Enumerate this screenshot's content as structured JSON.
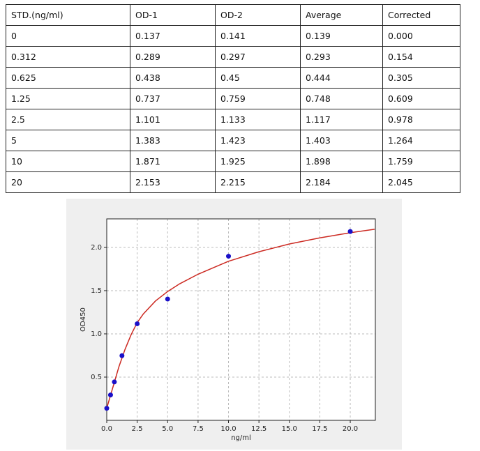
{
  "table": {
    "rows": [
      [
        "STD.(ng/ml)",
        "OD-1",
        "OD-2",
        "Average",
        "Corrected"
      ],
      [
        "0",
        "0.137",
        "0.141",
        "0.139",
        "0.000"
      ],
      [
        "0.312",
        "0.289",
        "0.297",
        "0.293",
        "0.154"
      ],
      [
        "0.625",
        "0.438",
        "0.45",
        "0.444",
        "0.305"
      ],
      [
        "1.25",
        "0.737",
        "0.759",
        "0.748",
        "0.609"
      ],
      [
        "2.5",
        "1.101",
        "1.133",
        "1.117",
        "0.978"
      ],
      [
        "5",
        "1.383",
        "1.423",
        "1.403",
        "1.264"
      ],
      [
        "10",
        "1.871",
        "1.925",
        "1.898",
        "1.759"
      ],
      [
        "20",
        "2.153",
        "2.215",
        "2.184",
        "2.045"
      ]
    ]
  },
  "chart_data": {
    "type": "scatter",
    "x_label": "ng/ml",
    "y_label": "OD450",
    "xlim": [
      0,
      22.06
    ],
    "ylim": [
      0,
      2.33
    ],
    "xticks": [
      {
        "value": 0,
        "label": "0.0"
      },
      {
        "value": 2.5,
        "label": "2.5"
      },
      {
        "value": 5,
        "label": "5.0"
      },
      {
        "value": 7.5,
        "label": "7.5"
      },
      {
        "value": 10,
        "label": "10.0"
      },
      {
        "value": 12.5,
        "label": "12.5"
      },
      {
        "value": 15,
        "label": "15.0"
      },
      {
        "value": 17.5,
        "label": "17.5"
      },
      {
        "value": 20,
        "label": "20.0"
      }
    ],
    "yticks": [
      {
        "value": 0.5,
        "label": "0.5"
      },
      {
        "value": 1,
        "label": "1.0"
      },
      {
        "value": 1.5,
        "label": "1.5"
      },
      {
        "value": 2,
        "label": "2.0"
      }
    ],
    "grid": true,
    "series": [
      {
        "type": "scatter",
        "color": "#1a10c8",
        "x": [
          0,
          0.312,
          0.625,
          1.25,
          2.5,
          5,
          10,
          20
        ],
        "values": [
          0.139,
          0.293,
          0.444,
          0.748,
          1.117,
          1.403,
          1.898,
          2.184
        ]
      },
      {
        "type": "line",
        "color": "#cc2a22",
        "x": [
          0,
          0.5,
          1,
          1.5,
          2,
          2.5,
          3,
          4,
          5,
          6,
          7.5,
          10,
          12.5,
          15,
          17.5,
          20,
          22
        ],
        "values": [
          0.14,
          0.38,
          0.62,
          0.82,
          0.99,
          1.13,
          1.23,
          1.38,
          1.49,
          1.58,
          1.69,
          1.84,
          1.95,
          2.04,
          2.11,
          2.17,
          2.21
        ]
      }
    ]
  }
}
